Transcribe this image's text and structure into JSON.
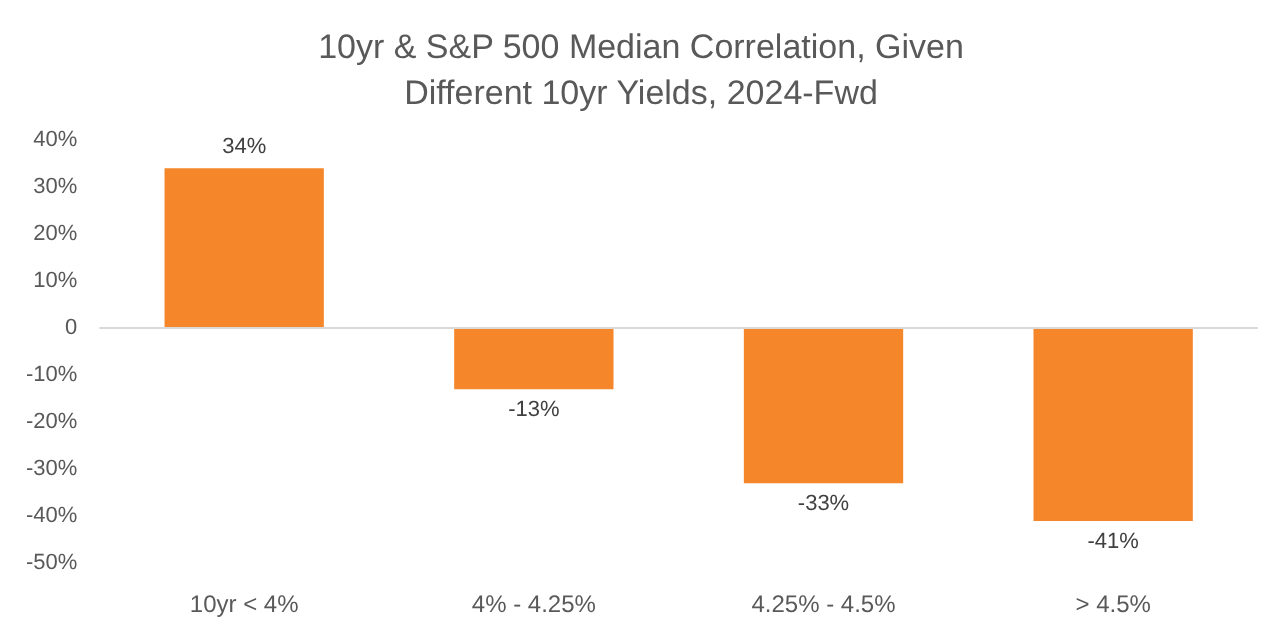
{
  "chart_data": {
    "type": "bar",
    "title": "10yr & S&P 500 Median Correlation, Given Different 10yr Yields, 2024-Fwd",
    "categories": [
      "10yr < 4%",
      "4% - 4.25%",
      "4.25% - 4.5%",
      "> 4.5%"
    ],
    "values": [
      34,
      -13,
      -33,
      -41
    ],
    "color": "#f5862a",
    "value_labels": [
      "34%",
      "-13%",
      "-33%",
      "-41%"
    ],
    "ylim": [
      -50,
      40
    ],
    "yticks": [
      {
        "value": -50,
        "label": "-50%"
      },
      {
        "value": -40,
        "label": "-40%"
      },
      {
        "value": -30,
        "label": "-30%"
      },
      {
        "value": -20,
        "label": "-20%"
      },
      {
        "value": -10,
        "label": "-10%"
      },
      {
        "value": 0,
        "label": "0"
      },
      {
        "value": 10,
        "label": "10%"
      },
      {
        "value": 20,
        "label": "20%"
      },
      {
        "value": 30,
        "label": "30%"
      },
      {
        "value": 40,
        "label": "40%"
      }
    ]
  }
}
